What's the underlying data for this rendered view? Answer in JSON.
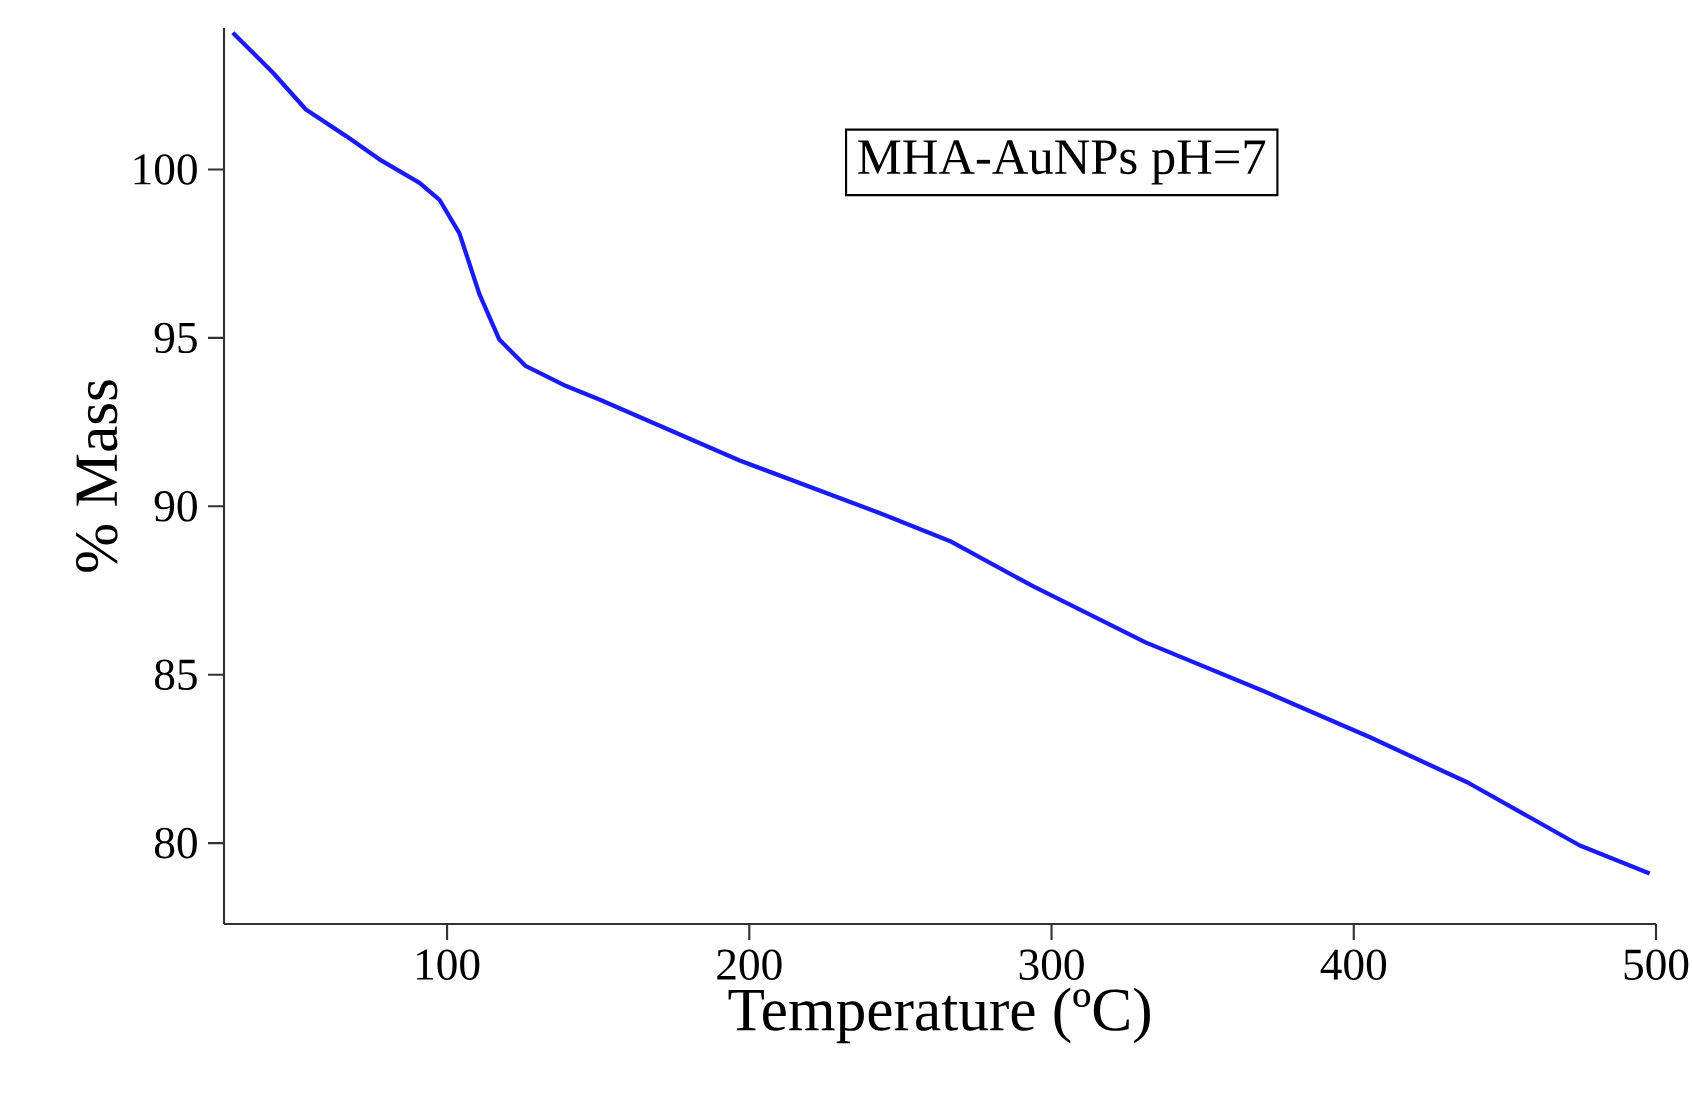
{
  "chart_data": {
    "type": "line",
    "xlabel": "Temperature (ºC)",
    "ylabel": "% Mass",
    "annotations": [
      "MHA-AuNPs pH=7"
    ],
    "xlim": [
      26.2,
      500
    ],
    "ylim": [
      77.6,
      104.2
    ],
    "xticks": [
      100,
      200,
      300,
      400,
      500
    ],
    "yticks": [
      80,
      85,
      90,
      95,
      100
    ],
    "marker": "none",
    "line_style": "solid",
    "series": [
      {
        "color": "#1a1aff",
        "x": [
          29.1,
          42.4,
          53.3,
          66.6,
          77.6,
          90.9,
          97.5,
          104.1,
          110.7,
          117.3,
          126.1,
          139.4,
          150.4,
          196.8,
          243.1,
          266.3,
          294.0,
          331.1,
          370.5,
          405.2,
          437.7,
          474.8,
          497.9
        ],
        "values": [
          104.06,
          102.87,
          101.78,
          100.99,
          100.3,
          99.6,
          99.1,
          98.1,
          96.3,
          94.95,
          94.16,
          93.57,
          93.17,
          91.36,
          89.8,
          88.97,
          87.62,
          85.96,
          84.5,
          83.15,
          81.8,
          79.93,
          79.1
        ]
      }
    ]
  }
}
